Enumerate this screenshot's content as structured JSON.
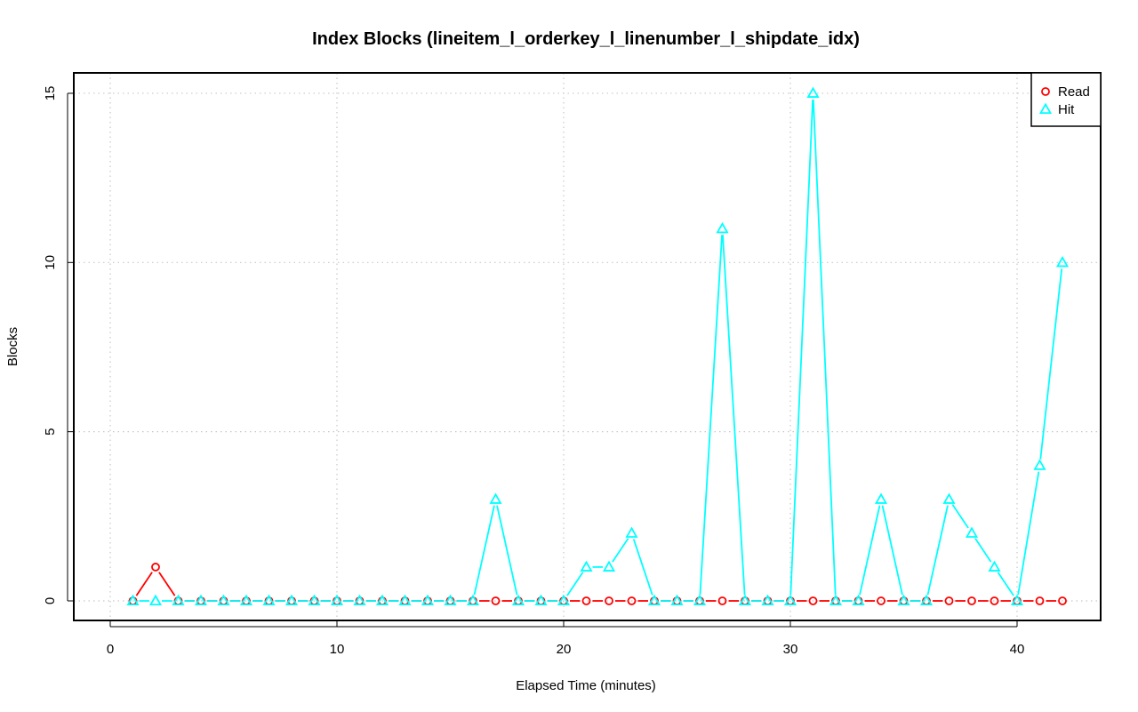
{
  "chart_data": {
    "type": "line",
    "title": "Index Blocks (lineitem_l_orderkey_l_linenumber_l_shipdate_idx)",
    "xlabel": "Elapsed Time (minutes)",
    "ylabel": "Blocks",
    "xlim": [
      0,
      44
    ],
    "ylim": [
      0,
      15
    ],
    "x_ticks": [
      0,
      10,
      20,
      30,
      40
    ],
    "y_ticks": [
      0,
      5,
      10,
      15
    ],
    "grid": true,
    "legend_position": "top-right",
    "x": [
      1,
      2,
      3,
      4,
      5,
      6,
      7,
      8,
      9,
      10,
      11,
      12,
      13,
      14,
      15,
      16,
      17,
      18,
      19,
      20,
      21,
      22,
      23,
      24,
      25,
      26,
      27,
      28,
      29,
      30,
      31,
      32,
      33,
      34,
      35,
      36,
      37,
      38,
      39,
      40,
      41,
      42
    ],
    "series": [
      {
        "name": "Read",
        "color": "#ff0000",
        "marker": "circle",
        "values": [
          0,
          1,
          0,
          0,
          0,
          0,
          0,
          0,
          0,
          0,
          0,
          0,
          0,
          0,
          0,
          0,
          0,
          0,
          0,
          0,
          0,
          0,
          0,
          0,
          0,
          0,
          0,
          0,
          0,
          0,
          0,
          0,
          0,
          0,
          0,
          0,
          0,
          0,
          0,
          0,
          0,
          0
        ]
      },
      {
        "name": "Hit",
        "color": "#00ffff",
        "marker": "triangle",
        "values": [
          0,
          0,
          0,
          0,
          0,
          0,
          0,
          0,
          0,
          0,
          0,
          0,
          0,
          0,
          0,
          0,
          3,
          0,
          0,
          0,
          1,
          1,
          2,
          0,
          0,
          0,
          11,
          0,
          0,
          0,
          15,
          0,
          0,
          3,
          0,
          0,
          3,
          2,
          1,
          0,
          4,
          10
        ]
      }
    ]
  }
}
